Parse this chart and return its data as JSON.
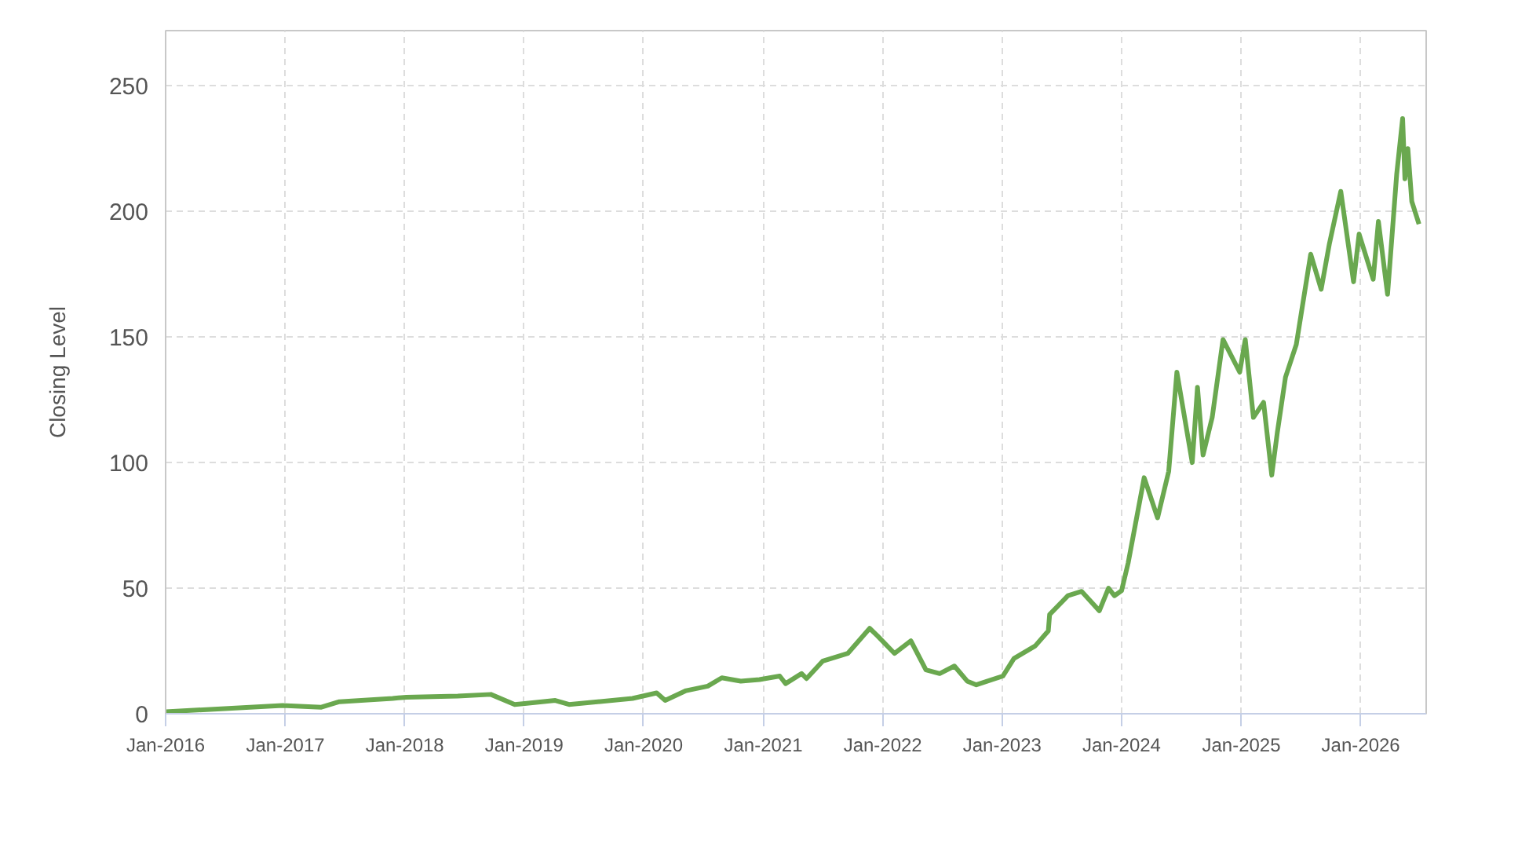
{
  "chart_data": {
    "type": "line",
    "ylabel": "Closing Level",
    "grid": true,
    "xlim": [
      "2016-01-01",
      "2026-07-20"
    ],
    "ylim": [
      0,
      272
    ],
    "yticks": [
      0,
      50,
      100,
      150,
      200,
      250
    ],
    "xticks": [
      {
        "value": "2016-01-01",
        "label": "Jan-2016"
      },
      {
        "value": "2017-01-01",
        "label": "Jan-2017"
      },
      {
        "value": "2018-01-01",
        "label": "Jan-2018"
      },
      {
        "value": "2019-01-01",
        "label": "Jan-2019"
      },
      {
        "value": "2020-01-01",
        "label": "Jan-2020"
      },
      {
        "value": "2021-01-01",
        "label": "Jan-2021"
      },
      {
        "value": "2022-01-01",
        "label": "Jan-2022"
      },
      {
        "value": "2023-01-01",
        "label": "Jan-2023"
      },
      {
        "value": "2024-01-01",
        "label": "Jan-2024"
      },
      {
        "value": "2025-01-01",
        "label": "Jan-2025"
      },
      {
        "value": "2026-01-01",
        "label": "Jan-2026"
      }
    ],
    "x": [
      "2016-01-01",
      "2016-12-23",
      "2017-04-21",
      "2017-06-15",
      "2017-11-25",
      "2018-01-06",
      "2018-06-12",
      "2018-09-21",
      "2018-12-03",
      "2018-12-28",
      "2019-04-06",
      "2019-05-18",
      "2019-11-28",
      "2020-02-10",
      "2020-03-07",
      "2020-05-10",
      "2020-07-15",
      "2020-08-27",
      "2020-10-24",
      "2020-12-20",
      "2021-02-20",
      "2021-03-10",
      "2021-04-28",
      "2021-05-13",
      "2021-07-02",
      "2021-09-16",
      "2021-11-22",
      "2021-12-16",
      "2022-02-06",
      "2022-03-28",
      "2022-05-13",
      "2022-06-24",
      "2022-08-08",
      "2022-09-16",
      "2022-10-14",
      "2023-01-03",
      "2023-02-06",
      "2023-04-12",
      "2023-05-22",
      "2023-05-26",
      "2023-07-21",
      "2023-09-01",
      "2023-10-25",
      "2023-11-22",
      "2023-12-10",
      "2024-01-01",
      "2024-01-21",
      "2024-03-10",
      "2024-04-20",
      "2024-05-24",
      "2024-06-18",
      "2024-08-04",
      "2024-08-20",
      "2024-09-06",
      "2024-10-04",
      "2024-11-06",
      "2024-12-27",
      "2025-01-13",
      "2025-02-07",
      "2025-03-10",
      "2025-04-04",
      "2025-04-21",
      "2025-05-16",
      "2025-06-18",
      "2025-08-01",
      "2025-09-02",
      "2025-09-27",
      "2025-11-01",
      "2025-12-10",
      "2025-12-27",
      "2026-02-08",
      "2026-02-24",
      "2026-03-24",
      "2026-04-21",
      "2026-05-09",
      "2026-05-16",
      "2026-05-25",
      "2026-06-06",
      "2026-06-28"
    ],
    "series": [
      {
        "color": "#6aa84f",
        "values": [
          0.8,
          3.3,
          2.6,
          4.8,
          6.1,
          6.6,
          7,
          7.7,
          3.7,
          4,
          5.3,
          3.7,
          6.1,
          8.3,
          5.3,
          9.2,
          11,
          14.3,
          13,
          13.6,
          15,
          12,
          16,
          14,
          21,
          24,
          34,
          31,
          24,
          29,
          17.5,
          16,
          19,
          13,
          11.5,
          15,
          22,
          27,
          33,
          39.5,
          47,
          48.7,
          41,
          50,
          47,
          49,
          60,
          94,
          78,
          96.5,
          136,
          100,
          130,
          103,
          118,
          149,
          136,
          149,
          118,
          124,
          95,
          112,
          134,
          147,
          183,
          169,
          187,
          208,
          172,
          191,
          173,
          196,
          167,
          215,
          237,
          213,
          225,
          204,
          195
        ]
      }
    ]
  }
}
